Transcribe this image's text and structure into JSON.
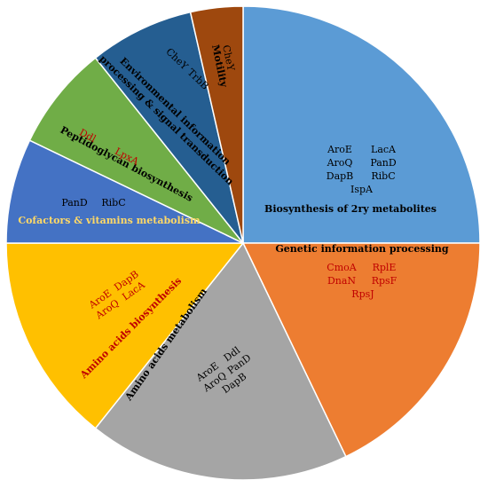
{
  "chart_data": {
    "type": "pie",
    "title": "",
    "slices": [
      {
        "category": "Biosynthesis of 2ry metabolites",
        "value": 7,
        "color": "#5B9BD5",
        "title_color": "#000000",
        "gene_color": "#000000",
        "genes": [
          [
            "AroE",
            "LacA"
          ],
          [
            "AroQ",
            "PanD"
          ],
          [
            "DapB",
            "RibC"
          ],
          [
            "IspA"
          ]
        ]
      },
      {
        "category": "Genetic information processing",
        "value": 5,
        "color": "#ED7D31",
        "title_color": "#000000",
        "gene_color": "#C00000",
        "genes": [
          [
            "CmoA",
            "RplE"
          ],
          [
            "DnaN",
            "RpsF"
          ],
          [
            "RpsJ"
          ]
        ]
      },
      {
        "category": "Amino acids metabolism",
        "value": 5,
        "color": "#A5A5A5",
        "title_color": "#000000",
        "gene_color": "#000000",
        "genes": [
          [
            "AroE",
            "Ddl"
          ],
          [
            "AroQ",
            "PanD"
          ],
          [
            "DapB"
          ]
        ]
      },
      {
        "category": "Amino acids biosynthesis",
        "value": 4,
        "color": "#FFC000",
        "title_color": "#C00000",
        "gene_color": "#C00000",
        "genes": [
          [
            "AroE",
            "DapB"
          ],
          [
            "AroQ",
            "LacA"
          ]
        ]
      },
      {
        "category": "Cofactors & vitamins metabolism",
        "value": 2,
        "color": "#4472C4",
        "title_color": "#FFD966",
        "gene_color": "#000000",
        "genes": [
          [
            "PanD",
            "RibC"
          ]
        ]
      },
      {
        "category": "Peptidoglycan biosynthesis",
        "value": 2,
        "color": "#70AD47",
        "title_color": "#000000",
        "gene_color": "#C00000",
        "genes": [
          [
            "Ddl",
            "LpxA"
          ]
        ]
      },
      {
        "category": "Environmental information processing & signal transduction",
        "value": 2,
        "color": "#255E91",
        "title_color": "#000000",
        "gene_color": "#000000",
        "genes": [
          [
            "CheY",
            "TrbB"
          ]
        ]
      },
      {
        "category": "Motility",
        "value": 1,
        "color": "#9E480E",
        "title_color": "#000000",
        "gene_color": "#000000",
        "genes": [
          [
            "CheY"
          ]
        ]
      }
    ]
  }
}
